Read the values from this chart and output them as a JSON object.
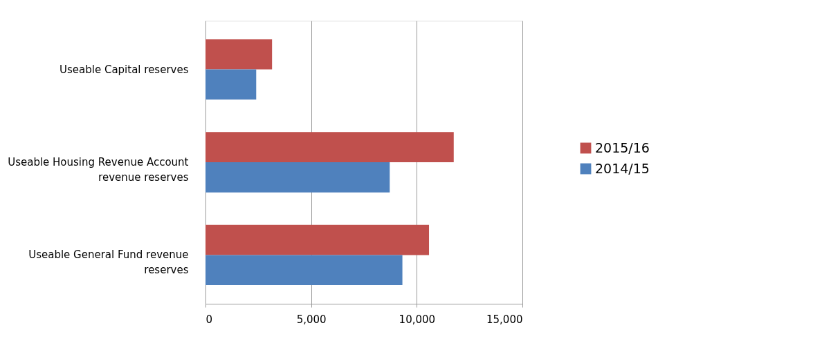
{
  "chart_data": {
    "type": "bar",
    "orientation": "horizontal",
    "categories": [
      "Useable Capital reserves",
      "Useable Housing Revenue Account revenue reserves",
      "Useable General Fund revenue reserves"
    ],
    "series": [
      {
        "name": "2015/16",
        "color": "#c0504d",
        "values": [
          3150,
          11750,
          10580
        ]
      },
      {
        "name": "2014/15",
        "color": "#4f81bd",
        "values": [
          2400,
          8720,
          9320
        ]
      }
    ],
    "xlim": [
      0,
      15000
    ],
    "xticks": [
      {
        "value": 0,
        "label": "0"
      },
      {
        "value": 5000,
        "label": "5,000"
      },
      {
        "value": 10000,
        "label": "10,000"
      },
      {
        "value": 15000,
        "label": "15,000"
      }
    ],
    "grid": "x",
    "legend": "right"
  }
}
